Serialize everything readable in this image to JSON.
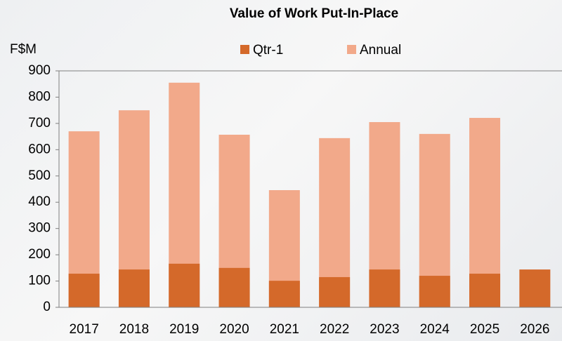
{
  "chart_data": {
    "type": "bar",
    "title": "Value of Work Put-In-Place",
    "y_label": "F$M",
    "categories": [
      "2017",
      "2018",
      "2019",
      "2020",
      "2021",
      "2022",
      "2023",
      "2024",
      "2025",
      "2026"
    ],
    "series": [
      {
        "name": "Annual",
        "color": "#f2a98a",
        "values": [
          670,
          750,
          855,
          657,
          446,
          644,
          705,
          660,
          721,
          null
        ]
      },
      {
        "name": "Qtr-1",
        "color": "#d4692a",
        "values": [
          128,
          144,
          166,
          150,
          101,
          115,
          144,
          120,
          128,
          144
        ]
      }
    ],
    "legend_order": [
      "Qtr-1",
      "Annual"
    ],
    "ylim": [
      0,
      900
    ],
    "yticks": [
      0,
      100,
      200,
      300,
      400,
      500,
      600,
      700,
      800,
      900
    ]
  }
}
